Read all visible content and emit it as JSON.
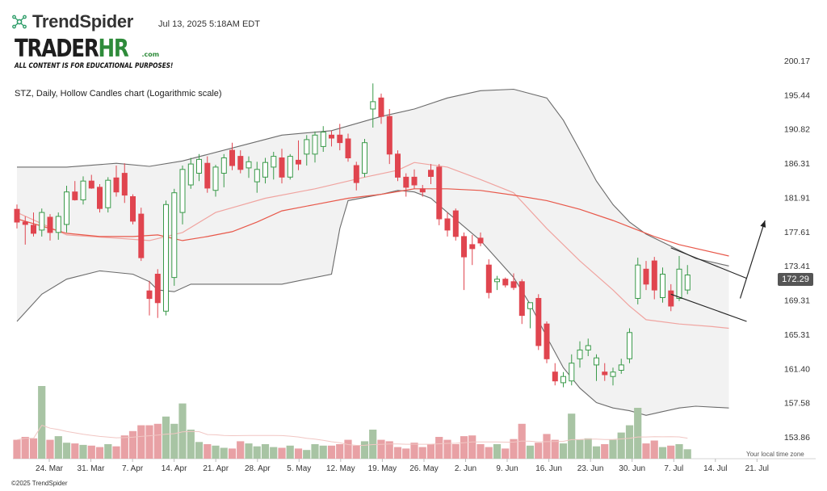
{
  "header": {
    "brand": "TrendSpider",
    "brand_icon": "trendspider-logo-icon",
    "datetime": "Jul 13, 2025 5:18AM EDT"
  },
  "watermark": {
    "main_left": "TRADER",
    "main_right": "HR",
    "suffix": ".com",
    "sub": "ALL CONTENT IS FOR EDUCATIONAL PURPOSES!"
  },
  "footer": {
    "timezone": "Your local time zone",
    "copyright": "©2025 TrendSpider"
  },
  "colors": {
    "bull": "#3a9a4a",
    "bear": "#e0454f",
    "bull_vol": "#a8c4a4",
    "bear_vol": "#e8a1a5",
    "band": "#6b6b6b",
    "band_fill": "#f2f2f2",
    "ma_slow": "#e8584a",
    "ma_mid": "#f0a4a0"
  },
  "chart_data": {
    "type": "candlestick",
    "title": "STZ, Daily, Hollow Candles chart (Logarithmic scale)",
    "scale": "log",
    "last_price": "172.29",
    "y_ticks": [
      "200.17",
      "195.44",
      "190.82",
      "186.31",
      "181.91",
      "177.61",
      "173.41",
      "169.31",
      "165.31",
      "161.40",
      "157.58",
      "153.86"
    ],
    "x_ticks": [
      "24. Mar",
      "31. Mar",
      "7. Apr",
      "14. Apr",
      "21. Apr",
      "28. Apr",
      "5. May",
      "12. May",
      "19. May",
      "26. May",
      "2. Jun",
      "9. Jun",
      "16. Jun",
      "23. Jun",
      "30. Jun",
      "7. Jul",
      "14. Jul",
      "21. Jul"
    ],
    "candles": [
      {
        "o": 180.4,
        "h": 181.0,
        "l": 178.0,
        "c": 178.8,
        "v": 0.26
      },
      {
        "o": 178.8,
        "h": 179.5,
        "l": 176.0,
        "c": 178.5,
        "v": 0.3
      },
      {
        "o": 178.4,
        "h": 180.0,
        "l": 177.0,
        "c": 177.4,
        "v": 0.28
      },
      {
        "o": 177.8,
        "h": 180.5,
        "l": 177.0,
        "c": 180.0,
        "v": 1.0
      },
      {
        "o": 179.4,
        "h": 179.8,
        "l": 176.5,
        "c": 177.5,
        "v": 0.26
      },
      {
        "o": 177.5,
        "h": 180.0,
        "l": 176.6,
        "c": 179.5,
        "v": 0.31
      },
      {
        "o": 178.5,
        "h": 183.4,
        "l": 177.5,
        "c": 182.6,
        "v": 0.22
      },
      {
        "o": 182.6,
        "h": 184.0,
        "l": 181.5,
        "c": 181.6,
        "v": 0.21
      },
      {
        "o": 181.6,
        "h": 184.6,
        "l": 181.0,
        "c": 184.0,
        "v": 0.19
      },
      {
        "o": 184.0,
        "h": 184.8,
        "l": 183.0,
        "c": 183.1,
        "v": 0.18
      },
      {
        "o": 183.2,
        "h": 183.6,
        "l": 180.0,
        "c": 180.5,
        "v": 0.16
      },
      {
        "o": 180.6,
        "h": 184.5,
        "l": 180.0,
        "c": 184.1,
        "v": 0.2
      },
      {
        "o": 184.4,
        "h": 186.0,
        "l": 182.0,
        "c": 182.6,
        "v": 0.17
      },
      {
        "o": 185.0,
        "h": 186.3,
        "l": 181.2,
        "c": 182.2,
        "v": 0.32
      },
      {
        "o": 182.0,
        "h": 182.3,
        "l": 178.5,
        "c": 178.9,
        "v": 0.38
      },
      {
        "o": 179.8,
        "h": 180.6,
        "l": 174.0,
        "c": 174.4,
        "v": 0.46
      },
      {
        "o": 170.4,
        "h": 171.6,
        "l": 167.5,
        "c": 169.5,
        "v": 0.46
      },
      {
        "o": 172.4,
        "h": 173.0,
        "l": 167.2,
        "c": 169.0,
        "v": 0.48
      },
      {
        "o": 168.0,
        "h": 181.5,
        "l": 167.5,
        "c": 181.0,
        "v": 0.58
      },
      {
        "o": 172.0,
        "h": 183.0,
        "l": 171.0,
        "c": 182.5,
        "v": 0.48
      },
      {
        "o": 180.0,
        "h": 186.0,
        "l": 178.5,
        "c": 185.5,
        "v": 0.76
      },
      {
        "o": 183.5,
        "h": 187.0,
        "l": 183.0,
        "c": 186.2,
        "v": 0.4
      },
      {
        "o": 185.0,
        "h": 187.5,
        "l": 184.0,
        "c": 186.8,
        "v": 0.23
      },
      {
        "o": 186.3,
        "h": 187.2,
        "l": 182.5,
        "c": 183.1,
        "v": 0.2
      },
      {
        "o": 182.8,
        "h": 186.1,
        "l": 182.0,
        "c": 185.8,
        "v": 0.18
      },
      {
        "o": 185.0,
        "h": 187.5,
        "l": 183.2,
        "c": 187.0,
        "v": 0.15
      },
      {
        "o": 188.0,
        "h": 189.0,
        "l": 185.4,
        "c": 186.0,
        "v": 0.14
      },
      {
        "o": 187.2,
        "h": 188.0,
        "l": 185.0,
        "c": 185.5,
        "v": 0.24
      },
      {
        "o": 185.7,
        "h": 187.2,
        "l": 184.4,
        "c": 186.5,
        "v": 0.21
      },
      {
        "o": 183.9,
        "h": 186.5,
        "l": 182.5,
        "c": 185.5,
        "v": 0.17
      },
      {
        "o": 184.5,
        "h": 187.0,
        "l": 183.7,
        "c": 186.4,
        "v": 0.2
      },
      {
        "o": 185.8,
        "h": 187.8,
        "l": 184.2,
        "c": 187.2,
        "v": 0.16
      },
      {
        "o": 187.0,
        "h": 188.2,
        "l": 183.7,
        "c": 184.5,
        "v": 0.15
      },
      {
        "o": 184.5,
        "h": 187.5,
        "l": 184.2,
        "c": 187.2,
        "v": 0.18
      },
      {
        "o": 186.7,
        "h": 189.3,
        "l": 185.4,
        "c": 186.2,
        "v": 0.14
      },
      {
        "o": 187.5,
        "h": 190.0,
        "l": 186.0,
        "c": 189.4,
        "v": 0.12
      },
      {
        "o": 187.5,
        "h": 190.5,
        "l": 186.4,
        "c": 190.0,
        "v": 0.2
      },
      {
        "o": 188.5,
        "h": 191.2,
        "l": 187.8,
        "c": 190.4,
        "v": 0.18
      },
      {
        "o": 190.0,
        "h": 190.6,
        "l": 188.5,
        "c": 189.6,
        "v": 0.18
      },
      {
        "o": 190.0,
        "h": 191.5,
        "l": 188.0,
        "c": 189.0,
        "v": 0.2
      },
      {
        "o": 189.5,
        "h": 190.2,
        "l": 186.5,
        "c": 187.0,
        "v": 0.26
      },
      {
        "o": 186.0,
        "h": 186.5,
        "l": 182.8,
        "c": 183.8,
        "v": 0.18
      },
      {
        "o": 185.0,
        "h": 189.5,
        "l": 184.5,
        "c": 189.0,
        "v": 0.24
      },
      {
        "o": 193.5,
        "h": 197.0,
        "l": 191.0,
        "c": 194.5,
        "v": 0.4
      },
      {
        "o": 195.0,
        "h": 195.6,
        "l": 191.5,
        "c": 192.5,
        "v": 0.26
      },
      {
        "o": 192.5,
        "h": 193.5,
        "l": 186.2,
        "c": 187.5,
        "v": 0.24
      },
      {
        "o": 187.5,
        "h": 188.0,
        "l": 184.0,
        "c": 184.5,
        "v": 0.16
      },
      {
        "o": 184.5,
        "h": 185.0,
        "l": 182.0,
        "c": 183.2,
        "v": 0.14
      },
      {
        "o": 184.5,
        "h": 185.5,
        "l": 183.0,
        "c": 183.5,
        "v": 0.22
      },
      {
        "o": 183.0,
        "h": 183.5,
        "l": 182.0,
        "c": 182.6,
        "v": 0.16
      },
      {
        "o": 185.4,
        "h": 186.2,
        "l": 183.6,
        "c": 184.6,
        "v": 0.2
      },
      {
        "o": 185.8,
        "h": 186.2,
        "l": 178.4,
        "c": 179.2,
        "v": 0.3
      },
      {
        "o": 179.2,
        "h": 180.0,
        "l": 177.0,
        "c": 177.8,
        "v": 0.26
      },
      {
        "o": 180.2,
        "h": 180.5,
        "l": 176.5,
        "c": 177.0,
        "v": 0.2
      },
      {
        "o": 177.0,
        "h": 177.5,
        "l": 170.5,
        "c": 174.5,
        "v": 0.31
      },
      {
        "o": 176.0,
        "h": 177.2,
        "l": 173.5,
        "c": 175.5,
        "v": 0.32
      },
      {
        "o": 176.8,
        "h": 177.5,
        "l": 175.8,
        "c": 176.2,
        "v": 0.2
      },
      {
        "o": 173.5,
        "h": 174.2,
        "l": 169.5,
        "c": 170.2,
        "v": 0.16
      },
      {
        "o": 171.5,
        "h": 172.2,
        "l": 170.5,
        "c": 171.8,
        "v": 0.2
      },
      {
        "o": 171.8,
        "h": 172.0,
        "l": 170.8,
        "c": 171.1,
        "v": 0.14
      },
      {
        "o": 171.5,
        "h": 172.5,
        "l": 170.5,
        "c": 170.8,
        "v": 0.27
      },
      {
        "o": 171.5,
        "h": 171.8,
        "l": 166.5,
        "c": 167.5,
        "v": 0.48
      },
      {
        "o": 168.3,
        "h": 169.0,
        "l": 166.0,
        "c": 169.0,
        "v": 0.18
      },
      {
        "o": 169.5,
        "h": 170.0,
        "l": 163.5,
        "c": 164.0,
        "v": 0.22
      },
      {
        "o": 166.5,
        "h": 166.8,
        "l": 162.0,
        "c": 162.5,
        "v": 0.34
      },
      {
        "o": 161.0,
        "h": 162.0,
        "l": 159.5,
        "c": 160.0,
        "v": 0.26
      },
      {
        "o": 159.8,
        "h": 161.0,
        "l": 159.3,
        "c": 160.5,
        "v": 0.21
      },
      {
        "o": 160.0,
        "h": 163.0,
        "l": 159.5,
        "c": 162.0,
        "v": 0.62
      },
      {
        "o": 162.5,
        "h": 164.5,
        "l": 161.5,
        "c": 163.5,
        "v": 0.26
      },
      {
        "o": 163.5,
        "h": 164.8,
        "l": 162.8,
        "c": 164.0,
        "v": 0.28
      },
      {
        "o": 161.8,
        "h": 163.0,
        "l": 160.0,
        "c": 162.6,
        "v": 0.17
      },
      {
        "o": 161.0,
        "h": 162.0,
        "l": 160.0,
        "c": 160.7,
        "v": 0.2
      },
      {
        "o": 160.5,
        "h": 161.5,
        "l": 159.5,
        "c": 161.0,
        "v": 0.26
      },
      {
        "o": 161.2,
        "h": 162.5,
        "l": 160.8,
        "c": 161.8,
        "v": 0.36
      },
      {
        "o": 162.5,
        "h": 166.0,
        "l": 162.0,
        "c": 165.5,
        "v": 0.46
      },
      {
        "o": 169.5,
        "h": 174.4,
        "l": 168.8,
        "c": 173.5,
        "v": 0.7
      },
      {
        "o": 173.0,
        "h": 174.0,
        "l": 170.5,
        "c": 171.2,
        "v": 0.21
      },
      {
        "o": 174.0,
        "h": 174.5,
        "l": 169.4,
        "c": 170.5,
        "v": 0.25
      },
      {
        "o": 169.6,
        "h": 173.2,
        "l": 169.0,
        "c": 172.4,
        "v": 0.16
      },
      {
        "o": 170.4,
        "h": 171.2,
        "l": 168.0,
        "c": 168.6,
        "v": 0.18
      },
      {
        "o": 169.5,
        "h": 174.6,
        "l": 169.2,
        "c": 173.0,
        "v": 0.2
      },
      {
        "o": 170.5,
        "h": 173.5,
        "l": 170.0,
        "c": 172.3,
        "v": 0.13
      }
    ],
    "bollinger": {
      "upper": [
        [
          0,
          185.8
        ],
        [
          6,
          185.8
        ],
        [
          12,
          186.3
        ],
        [
          16,
          185.9
        ],
        [
          20,
          186.6
        ],
        [
          26,
          188.3
        ],
        [
          32,
          190.0
        ],
        [
          38,
          190.6
        ],
        [
          44,
          192.5
        ],
        [
          48,
          193.5
        ],
        [
          52,
          195.0
        ],
        [
          56,
          196.0
        ],
        [
          60,
          196.2
        ],
        [
          64,
          195.0
        ],
        [
          66,
          192.0
        ],
        [
          68,
          188.0
        ],
        [
          70,
          184.0
        ],
        [
          72,
          181.0
        ],
        [
          74,
          178.8
        ],
        [
          76,
          177.3
        ],
        [
          79,
          175.8
        ],
        [
          82,
          174.3
        ],
        [
          86,
          173.4
        ]
      ],
      "lower": [
        [
          0,
          166.8
        ],
        [
          3,
          170.0
        ],
        [
          6,
          171.8
        ],
        [
          10,
          172.8
        ],
        [
          14,
          172.4
        ],
        [
          16,
          171.5
        ],
        [
          17,
          170.5
        ],
        [
          19,
          170.3
        ],
        [
          21,
          171.2
        ],
        [
          26,
          171.2
        ],
        [
          32,
          171.2
        ],
        [
          38,
          172.4
        ],
        [
          39,
          178.0
        ],
        [
          40,
          181.5
        ],
        [
          44,
          182.3
        ],
        [
          46,
          182.8
        ],
        [
          48,
          182.6
        ],
        [
          50,
          181.8
        ],
        [
          52,
          180.0
        ],
        [
          56,
          176.5
        ],
        [
          60,
          172.0
        ],
        [
          62,
          168.8
        ],
        [
          64,
          165.0
        ],
        [
          66,
          161.5
        ],
        [
          68,
          159.2
        ],
        [
          70,
          157.6
        ],
        [
          72,
          157.0
        ],
        [
          74,
          156.7
        ],
        [
          76,
          156.2
        ],
        [
          78,
          156.6
        ],
        [
          80,
          157.0
        ],
        [
          82,
          157.2
        ],
        [
          86,
          157.0
        ]
      ]
    },
    "ma_slow": [
      [
        0,
        179.2
      ],
      [
        4,
        178.0
      ],
      [
        6,
        177.4
      ],
      [
        10,
        177.0
      ],
      [
        14,
        177.0
      ],
      [
        17,
        177.2
      ],
      [
        20,
        176.5
      ],
      [
        23,
        177.0
      ],
      [
        26,
        177.6
      ],
      [
        29,
        178.8
      ],
      [
        32,
        180.2
      ],
      [
        36,
        181.0
      ],
      [
        40,
        181.8
      ],
      [
        44,
        182.3
      ],
      [
        48,
        183.0
      ],
      [
        52,
        183.0
      ],
      [
        56,
        182.8
      ],
      [
        60,
        182.2
      ],
      [
        64,
        181.5
      ],
      [
        68,
        180.4
      ],
      [
        72,
        179.0
      ],
      [
        74,
        178.2
      ],
      [
        77,
        177.0
      ],
      [
        80,
        176.0
      ],
      [
        86,
        174.6
      ]
    ],
    "ma_mid": [
      [
        0,
        180.0
      ],
      [
        6,
        177.2
      ],
      [
        12,
        176.8
      ],
      [
        16,
        176.5
      ],
      [
        20,
        177.5
      ],
      [
        24,
        180.0
      ],
      [
        30,
        181.8
      ],
      [
        36,
        183.0
      ],
      [
        42,
        184.5
      ],
      [
        46,
        185.4
      ],
      [
        48,
        186.4
      ],
      [
        52,
        185.8
      ],
      [
        56,
        184.2
      ],
      [
        60,
        182.5
      ],
      [
        64,
        178.0
      ],
      [
        68,
        174.0
      ],
      [
        72,
        170.5
      ],
      [
        74,
        168.6
      ],
      [
        76,
        167.0
      ],
      [
        80,
        166.5
      ],
      [
        84,
        166.2
      ],
      [
        86,
        166.0
      ]
    ],
    "channel": [
      [
        [
          79,
          175.6
        ],
        [
          86,
          172.4
        ]
      ],
      [
        [
          79,
          170.0
        ],
        [
          86,
          167.3
        ]
      ]
    ],
    "arrow": [
      [
        86,
        169.5
      ],
      [
        89,
        179.0
      ]
    ]
  }
}
